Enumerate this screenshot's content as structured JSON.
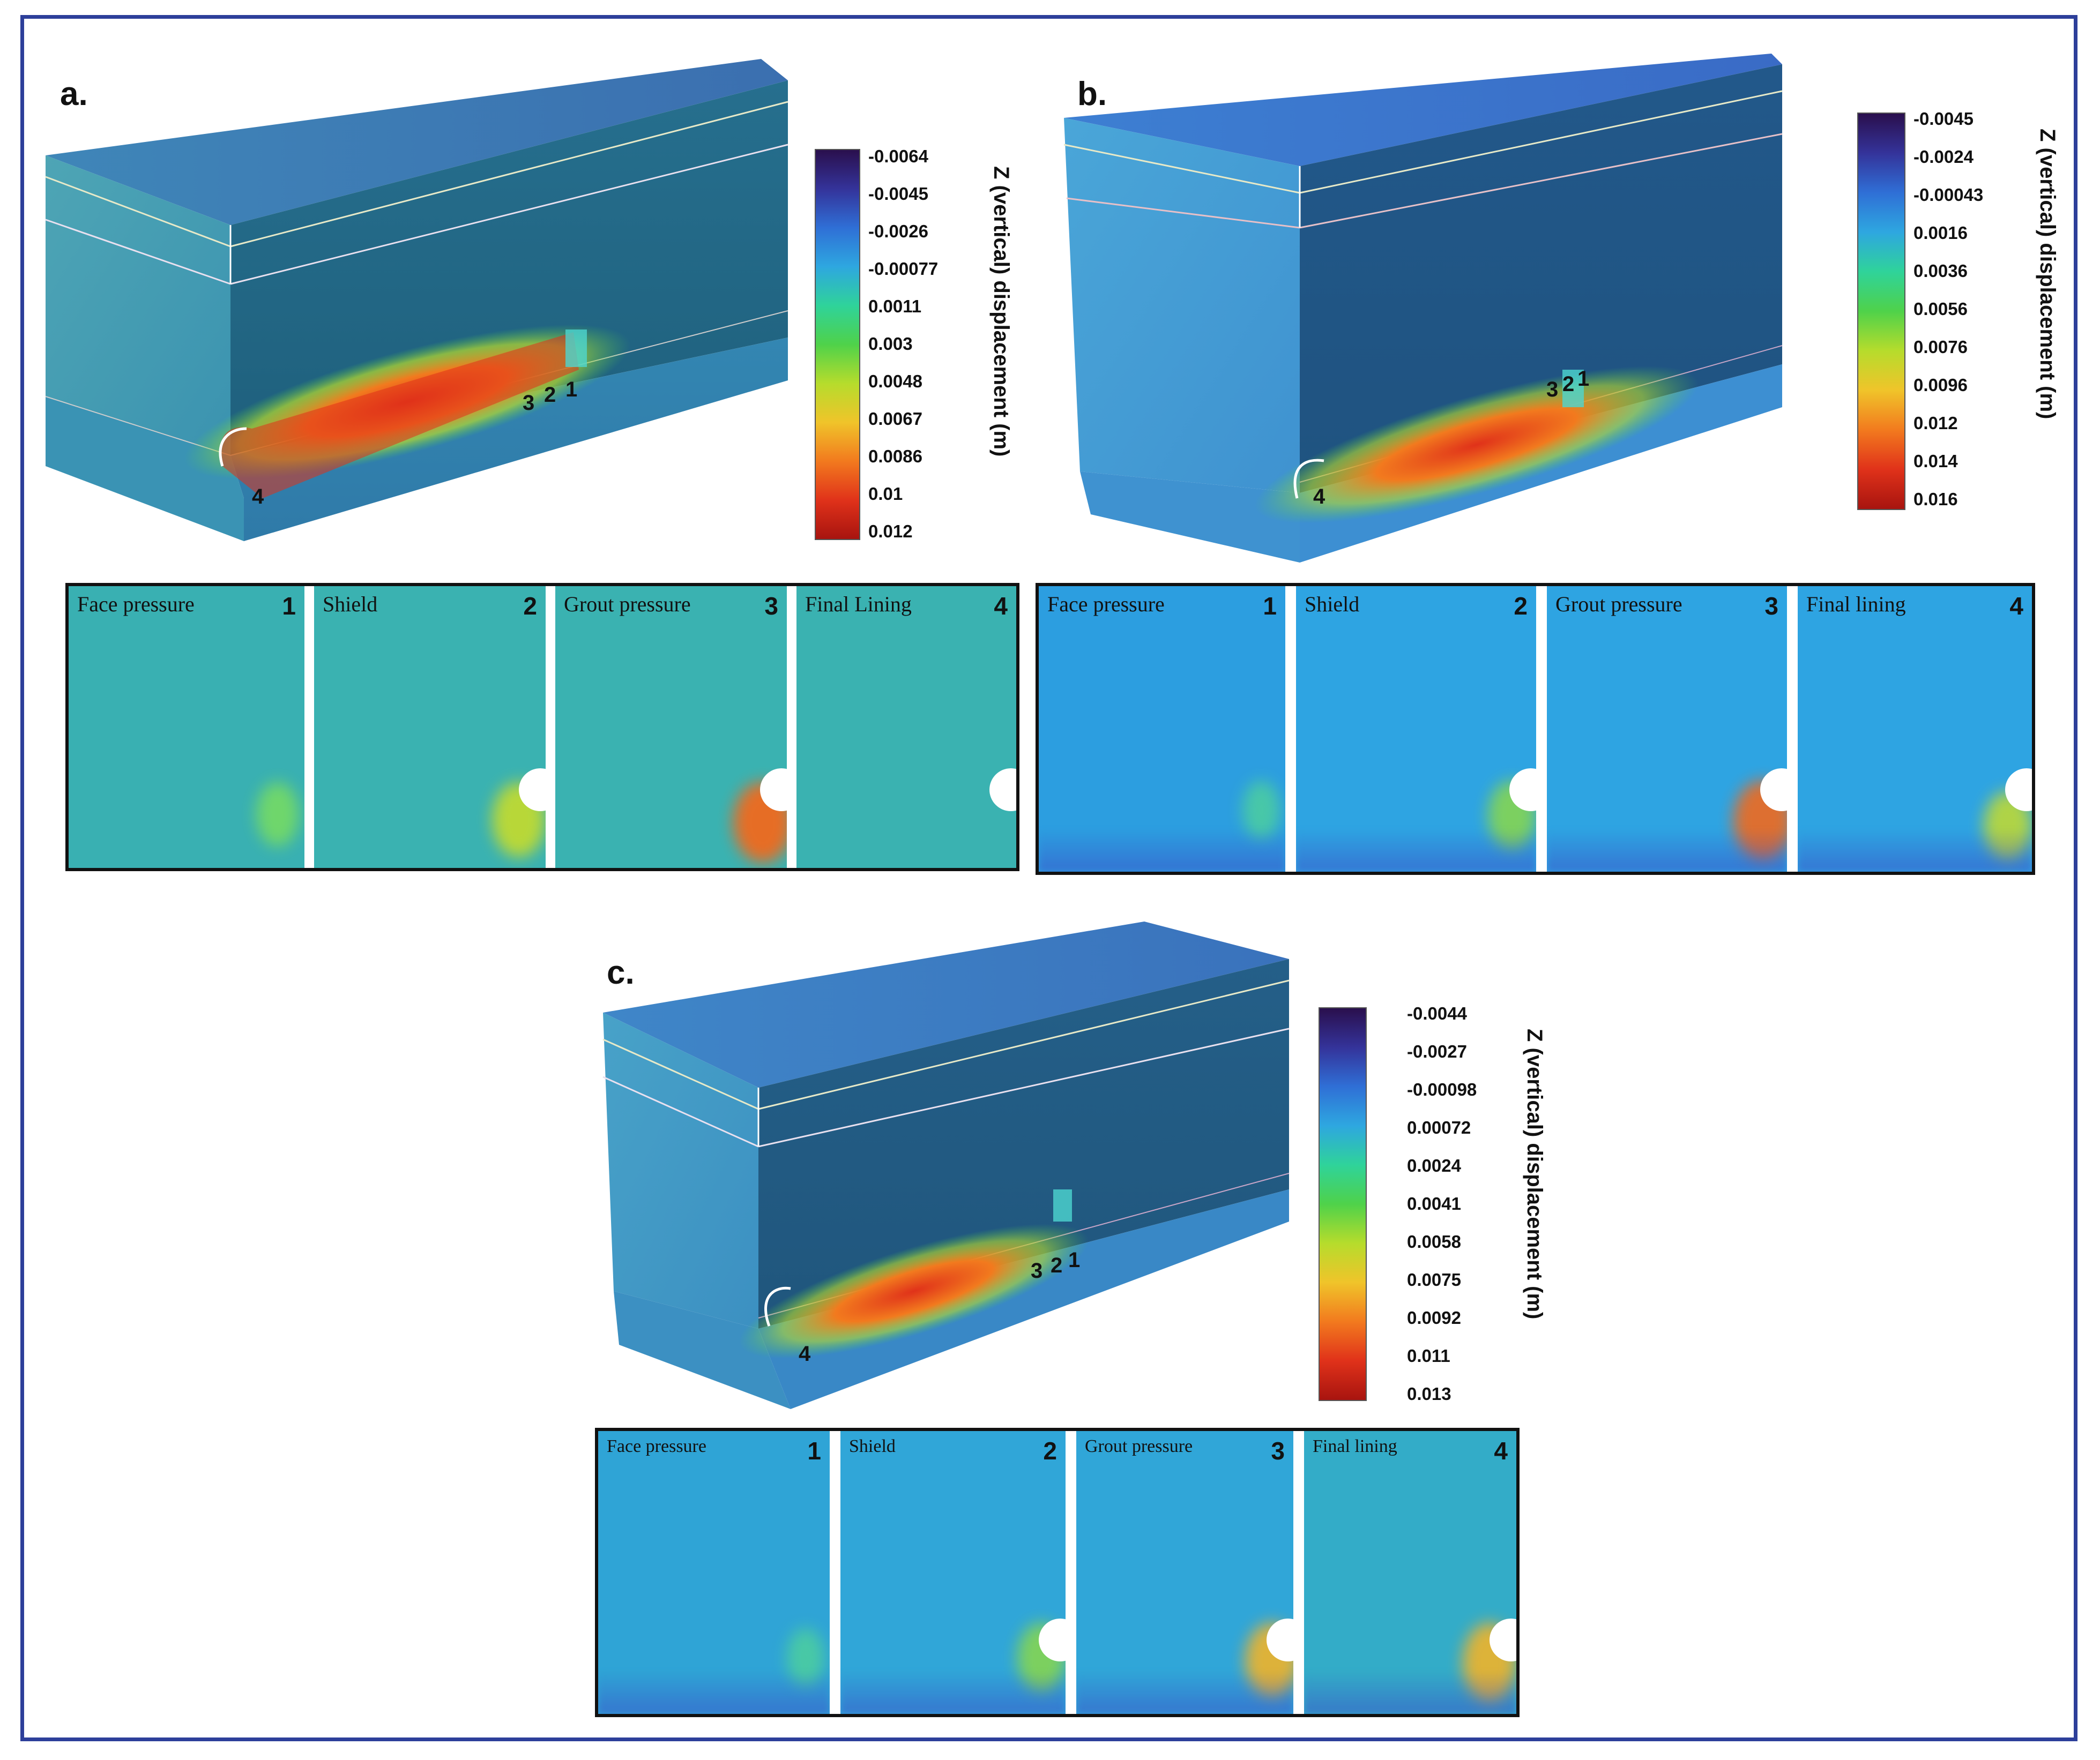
{
  "panels": [
    {
      "letter": "a.",
      "stage_labels": [
        "1",
        "2",
        "3",
        "4"
      ],
      "colorbar": {
        "title": "Z (vertical) displacement (m)",
        "ticks": [
          "-0.0064",
          "-0.0045",
          "-0.0026",
          "-0.00077",
          "0.0011",
          "0.003",
          "0.0048",
          "0.0067",
          "0.0086",
          "0.01",
          "0.012"
        ]
      },
      "stages": [
        {
          "title": "Face pressure",
          "number": "1"
        },
        {
          "title": "Shield",
          "number": "2"
        },
        {
          "title": "Grout pressure",
          "number": "3"
        },
        {
          "title": "Final Lining",
          "number": "4"
        }
      ]
    },
    {
      "letter": "b.",
      "stage_labels": [
        "1",
        "2",
        "3",
        "4"
      ],
      "colorbar": {
        "title": "Z (vertical) displacement (m)",
        "ticks": [
          "-0.0045",
          "-0.0024",
          "-0.00043",
          "0.0016",
          "0.0036",
          "0.0056",
          "0.0076",
          "0.0096",
          "0.012",
          "0.014",
          "0.016"
        ]
      },
      "stages": [
        {
          "title": "Face pressure",
          "number": "1"
        },
        {
          "title": "Shield",
          "number": "2"
        },
        {
          "title": "Grout pressure",
          "number": "3"
        },
        {
          "title": "Final lining",
          "number": "4"
        }
      ]
    },
    {
      "letter": "c.",
      "stage_labels": [
        "1",
        "2",
        "3",
        "4"
      ],
      "colorbar": {
        "title": "Z (vertical) displacement (m)",
        "ticks": [
          "-0.0044",
          "-0.0027",
          "-0.00098",
          "0.00072",
          "0.0024",
          "0.0041",
          "0.0058",
          "0.0075",
          "0.0092",
          "0.011",
          "0.013"
        ]
      },
      "stages": [
        {
          "title": "Face pressure",
          "number": "1"
        },
        {
          "title": "Shield",
          "number": "2"
        },
        {
          "title": "Grout pressure",
          "number": "3"
        },
        {
          "title": "Final lining",
          "number": "4"
        }
      ]
    }
  ],
  "colors": {
    "frame": "#2d3f9a",
    "colormap": [
      "#2a0f4d",
      "#34339a",
      "#2f6fd6",
      "#2ea7e0",
      "#2fd39a",
      "#4fd24a",
      "#b6dc2c",
      "#f0c42a",
      "#f27a1e",
      "#e0321a",
      "#a8140f"
    ]
  }
}
